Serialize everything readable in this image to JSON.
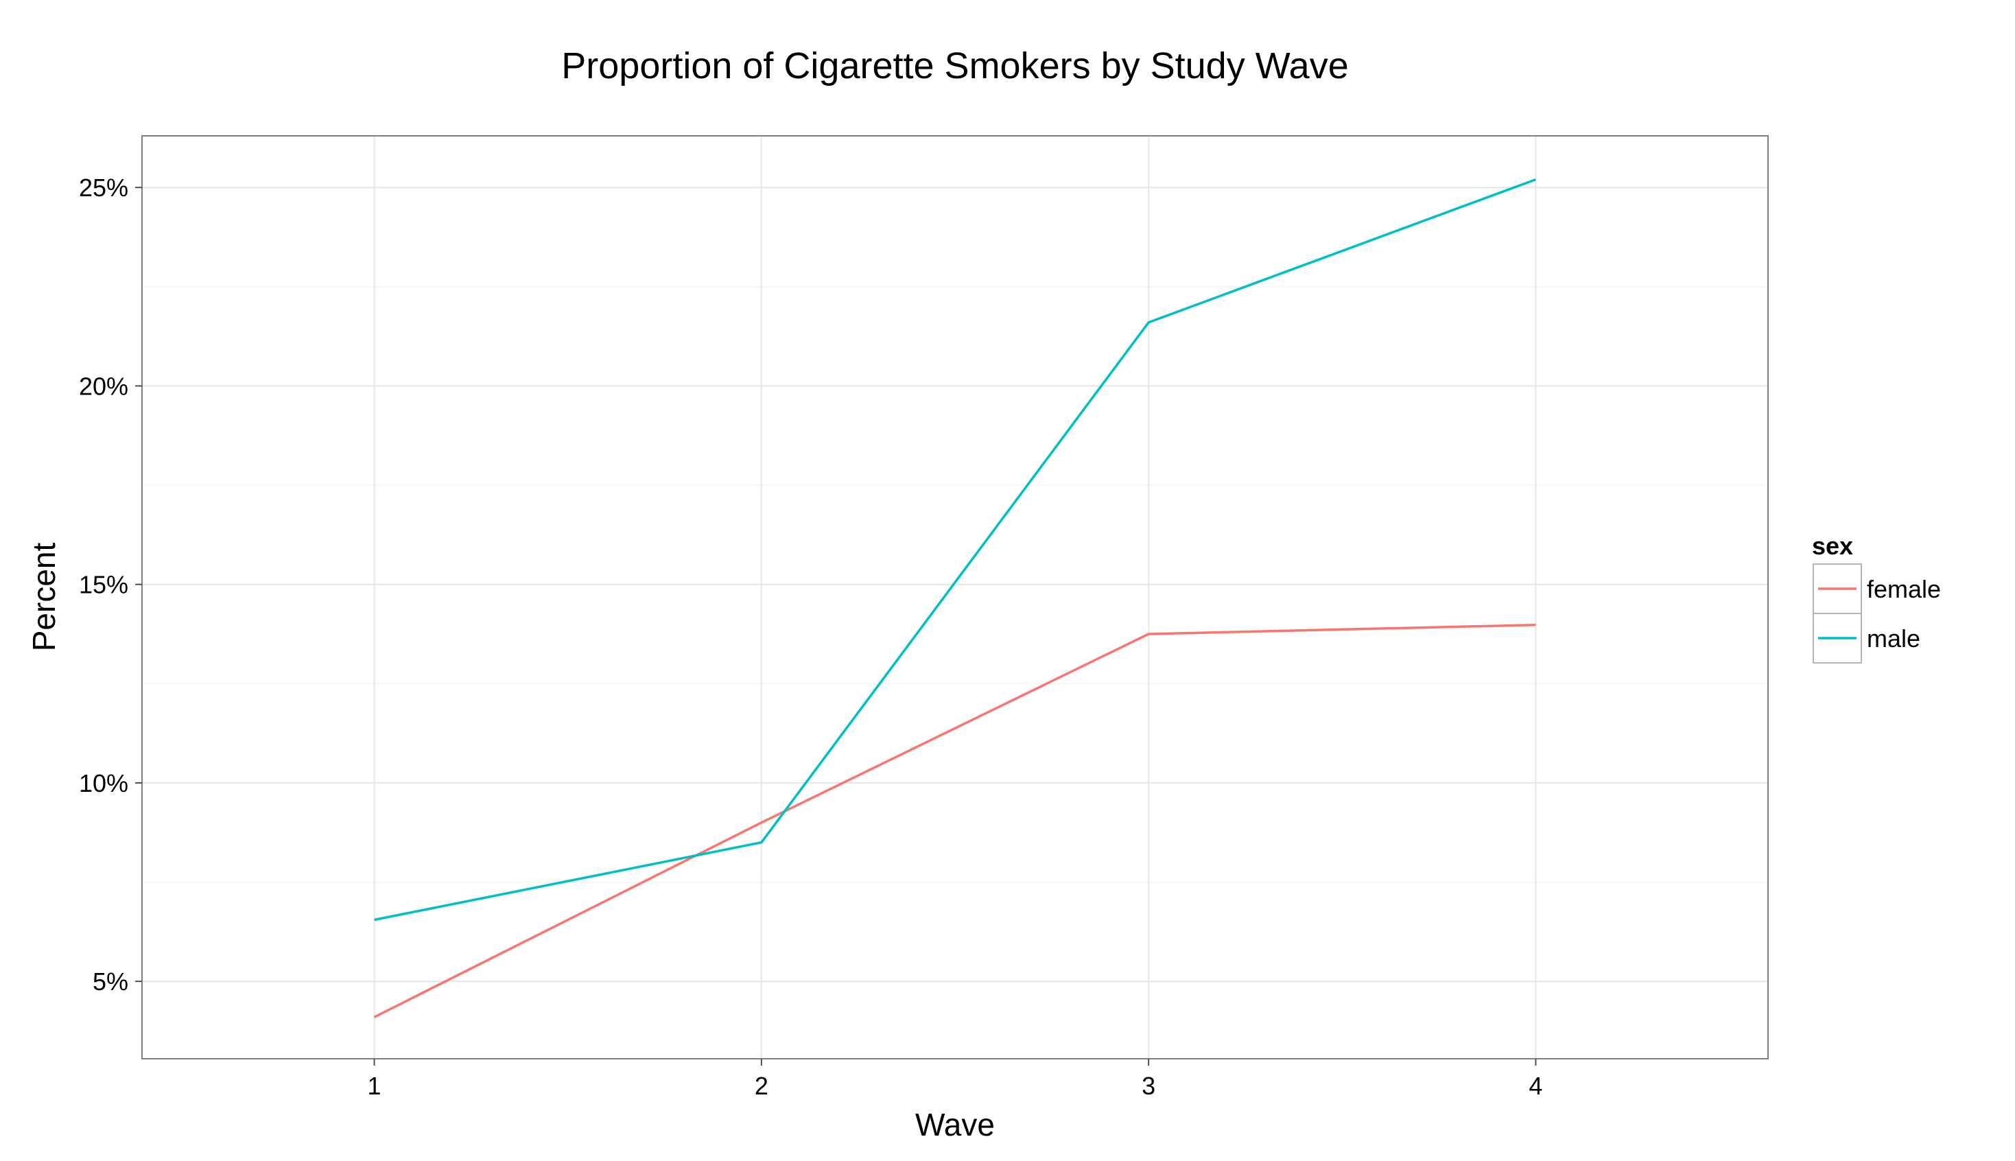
{
  "chart_data": {
    "type": "line",
    "title": "Proportion of Cigarette Smokers by Study Wave",
    "xlabel": "Wave",
    "ylabel": "Percent",
    "x": [
      1,
      2,
      3,
      4
    ],
    "x_tick_labels": [
      "1",
      "2",
      "3",
      "4"
    ],
    "xlim": [
      0.4,
      4.6
    ],
    "ylim": [
      3.05,
      26.3
    ],
    "y_ticks": [
      5,
      10,
      15,
      20,
      25
    ],
    "y_tick_labels": [
      "5%",
      "10%",
      "15%",
      "20%",
      "25%"
    ],
    "y_minor_ticks": [
      7.5,
      12.5,
      17.5,
      22.5
    ],
    "grid": true,
    "legend_placement": "right",
    "legend_title": "sex",
    "series": [
      {
        "name": "female",
        "color": "#F8766D",
        "values": [
          4.1,
          9.0,
          13.75,
          13.98
        ]
      },
      {
        "name": "male",
        "color": "#00BFC4",
        "values": [
          6.55,
          8.5,
          21.6,
          25.2
        ]
      }
    ]
  },
  "colors": {
    "panel_border": "#7f7f7f",
    "grid_major": "#e6e6e6",
    "grid_minor": "#f4f4f4",
    "legend_border": "#b3b3b3"
  }
}
